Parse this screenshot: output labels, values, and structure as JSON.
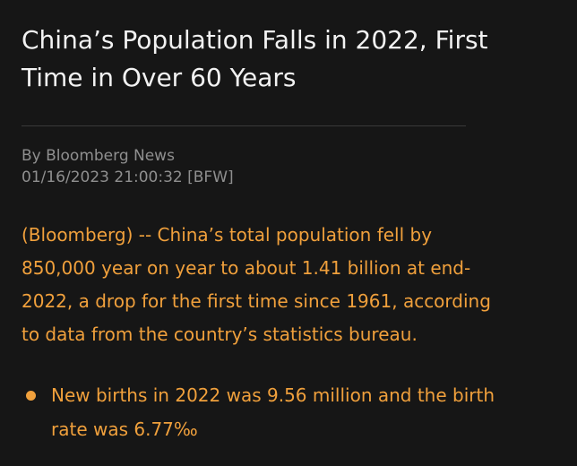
{
  "article": {
    "headline_lines": [
      "China’s Population Falls in 2022, First",
      "Time in Over 60 Years"
    ],
    "byline": {
      "author": "By Bloomberg News",
      "timestamp": "01/16/2023 21:00:32 [BFW]"
    },
    "paragraph_lines": [
      "(Bloomberg) -- China’s total population fell by",
      "850,000 year on year to about 1.41 billion at end-",
      "2022, a drop for the first time since 1961, according",
      "to data from the country’s statistics bureau."
    ],
    "bullets": [
      {
        "lines": [
          "New births in 2022 was 9.56 million and the birth",
          "rate was 6.77‰"
        ]
      }
    ]
  },
  "colors": {
    "background": "#161616",
    "headline": "#f2f2f2",
    "byline": "#8f8f8f",
    "body_text": "#f0a03c",
    "divider": "#3a3a3a"
  }
}
